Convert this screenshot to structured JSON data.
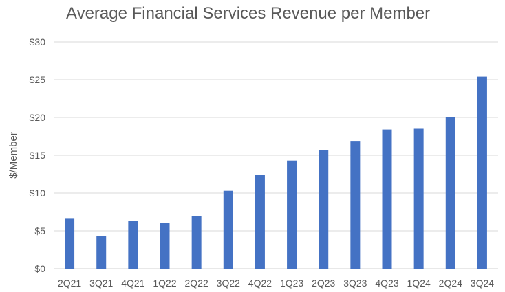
{
  "chart_data": {
    "type": "bar",
    "title": "Average Financial Services Revenue per Member",
    "xlabel": "",
    "ylabel": "$/Member",
    "ylim": [
      0,
      30
    ],
    "yticks": [
      0,
      5,
      10,
      15,
      20,
      25,
      30
    ],
    "ytick_labels": [
      "$0",
      "$5",
      "$10",
      "$15",
      "$20",
      "$25",
      "$30"
    ],
    "grid": true,
    "bar_color": "#4472C4",
    "categories": [
      "2Q21",
      "3Q21",
      "4Q21",
      "1Q22",
      "2Q22",
      "3Q22",
      "4Q22",
      "1Q23",
      "2Q23",
      "3Q23",
      "4Q23",
      "1Q24",
      "2Q24",
      "3Q24"
    ],
    "values": [
      6.6,
      4.3,
      6.3,
      6.0,
      7.0,
      10.3,
      12.4,
      14.3,
      15.7,
      16.9,
      18.4,
      18.5,
      20.0,
      25.4
    ]
  }
}
